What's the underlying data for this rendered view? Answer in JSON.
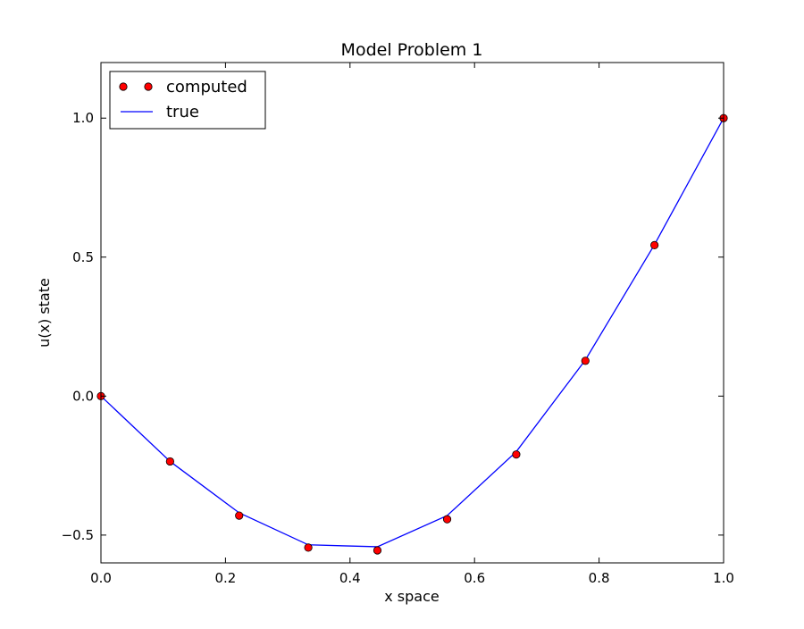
{
  "chart_data": {
    "type": "line",
    "title": "Model Problem 1",
    "xlabel": "x space",
    "ylabel": "u(x) state",
    "xlim": [
      0.0,
      1.0
    ],
    "ylim": [
      -0.6,
      1.2
    ],
    "x_ticks": [
      {
        "value": 0.0,
        "label": "0.0"
      },
      {
        "value": 0.2,
        "label": "0.2"
      },
      {
        "value": 0.4,
        "label": "0.4"
      },
      {
        "value": 0.6,
        "label": "0.6"
      },
      {
        "value": 0.8,
        "label": "0.8"
      },
      {
        "value": 1.0,
        "label": "1.0"
      }
    ],
    "y_ticks": [
      {
        "value": -0.5,
        "label": "−0.5"
      },
      {
        "value": 0.0,
        "label": "0.0"
      },
      {
        "value": 0.5,
        "label": "0.5"
      },
      {
        "value": 1.0,
        "label": "1.0"
      }
    ],
    "grid": false,
    "legend_position": "top-left",
    "series": [
      {
        "name": "computed",
        "style": "markers",
        "marker_color": "#ff0000",
        "marker_edge_color": "#000000",
        "x": [
          0.0,
          0.111,
          0.222,
          0.333,
          0.444,
          0.556,
          0.667,
          0.778,
          0.889,
          1.0
        ],
        "y": [
          0.0,
          -0.235,
          -0.43,
          -0.545,
          -0.555,
          -0.443,
          -0.21,
          0.127,
          0.543,
          1.0
        ]
      },
      {
        "name": "true",
        "style": "line",
        "line_color": "#0000ff",
        "x": [
          0.0,
          0.111,
          0.222,
          0.333,
          0.444,
          0.556,
          0.667,
          0.778,
          0.889,
          1.0
        ],
        "y": [
          0.0,
          -0.235,
          -0.42,
          -0.535,
          -0.542,
          -0.43,
          -0.2,
          0.13,
          0.545,
          1.0
        ]
      }
    ]
  }
}
